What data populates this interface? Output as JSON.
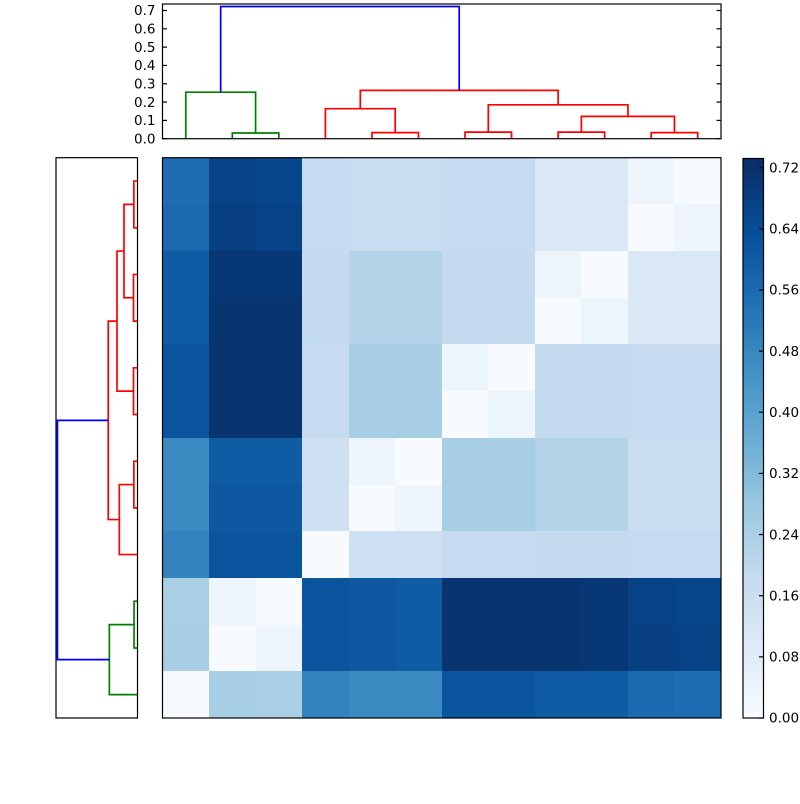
{
  "figure": {
    "background": "#ffffff",
    "description": "Hierarchical clustering figure: top and left dendrograms flanking a 12x12 distance-matrix heatmap with a Blues colorbar on the right"
  },
  "colors": {
    "axes_edge": "#000000",
    "tick_label": "#000000",
    "dendro_blue": "#0000ff",
    "dendro_green": "#008000",
    "dendro_red": "#ff0000"
  },
  "chart_data": {
    "type": "heatmap",
    "title": "",
    "grid": false,
    "colormap": {
      "name": "Blues",
      "vmin": 0.0,
      "vmax": 0.72,
      "anchors": [
        {
          "t": 0.0,
          "color": "#f7fbff"
        },
        {
          "t": 0.125,
          "color": "#deebf7"
        },
        {
          "t": 0.25,
          "color": "#c6dbef"
        },
        {
          "t": 0.375,
          "color": "#9ecae1"
        },
        {
          "t": 0.5,
          "color": "#6baed6"
        },
        {
          "t": 0.625,
          "color": "#4292c6"
        },
        {
          "t": 0.75,
          "color": "#2171b5"
        },
        {
          "t": 0.875,
          "color": "#08519c"
        },
        {
          "t": 1.0,
          "color": "#08306b"
        }
      ]
    },
    "heatmap": {
      "n_rows": 12,
      "n_cols": 12,
      "note": "Distance matrix; columns left-to-right are dendrogram leaves L1..L12, rows top-to-bottom are leaves L12..L1 (anti-diagonal is zero)",
      "values": [
        [
          0.55,
          0.67,
          0.66,
          0.18,
          0.17,
          0.17,
          0.18,
          0.18,
          0.105,
          0.105,
          0.033,
          0.0
        ],
        [
          0.56,
          0.68,
          0.67,
          0.18,
          0.17,
          0.17,
          0.18,
          0.18,
          0.105,
          0.105,
          0.0,
          0.033
        ],
        [
          0.6,
          0.7,
          0.7,
          0.185,
          0.22,
          0.22,
          0.185,
          0.185,
          0.036,
          0.0,
          0.105,
          0.105
        ],
        [
          0.6,
          0.71,
          0.71,
          0.185,
          0.22,
          0.22,
          0.185,
          0.185,
          0.0,
          0.036,
          0.105,
          0.105
        ],
        [
          0.62,
          0.71,
          0.71,
          0.18,
          0.25,
          0.25,
          0.036,
          0.0,
          0.185,
          0.185,
          0.18,
          0.18
        ],
        [
          0.62,
          0.71,
          0.71,
          0.18,
          0.25,
          0.25,
          0.0,
          0.036,
          0.185,
          0.185,
          0.18,
          0.18
        ],
        [
          0.47,
          0.6,
          0.6,
          0.155,
          0.033,
          0.0,
          0.25,
          0.25,
          0.22,
          0.22,
          0.17,
          0.17
        ],
        [
          0.47,
          0.61,
          0.61,
          0.15,
          0.0,
          0.033,
          0.25,
          0.25,
          0.22,
          0.22,
          0.17,
          0.17
        ],
        [
          0.49,
          0.62,
          0.62,
          0.0,
          0.15,
          0.155,
          0.18,
          0.18,
          0.185,
          0.185,
          0.18,
          0.18
        ],
        [
          0.245,
          0.031,
          0.0,
          0.62,
          0.61,
          0.6,
          0.71,
          0.71,
          0.71,
          0.7,
          0.67,
          0.66
        ],
        [
          0.25,
          0.0,
          0.031,
          0.62,
          0.61,
          0.6,
          0.71,
          0.71,
          0.71,
          0.7,
          0.68,
          0.67
        ],
        [
          0.0,
          0.25,
          0.245,
          0.49,
          0.47,
          0.47,
          0.62,
          0.62,
          0.6,
          0.6,
          0.56,
          0.55
        ]
      ]
    },
    "dendrogram": {
      "n_leaves": 12,
      "leaf_ids": [
        "L1",
        "L2",
        "L3",
        "L4",
        "L5",
        "L6",
        "L7",
        "L8",
        "L9",
        "L10",
        "L11",
        "L12"
      ],
      "merges": [
        {
          "id": "G1",
          "children": [
            "L2",
            "L3"
          ],
          "height": 0.031,
          "color": "green"
        },
        {
          "id": "G",
          "children": [
            "L1",
            "G1"
          ],
          "height": 0.254,
          "color": "green"
        },
        {
          "id": "R1a",
          "children": [
            "L5",
            "L6"
          ],
          "height": 0.033,
          "color": "red"
        },
        {
          "id": "R1",
          "children": [
            "L4",
            "R1a"
          ],
          "height": 0.164,
          "color": "red"
        },
        {
          "id": "R2a",
          "children": [
            "L7",
            "L8"
          ],
          "height": 0.036,
          "color": "red"
        },
        {
          "id": "R2b",
          "children": [
            "L9",
            "L10"
          ],
          "height": 0.036,
          "color": "red"
        },
        {
          "id": "R2c",
          "children": [
            "L11",
            "L12"
          ],
          "height": 0.033,
          "color": "red"
        },
        {
          "id": "R2bc",
          "children": [
            "R2b",
            "R2c"
          ],
          "height": 0.122,
          "color": "red"
        },
        {
          "id": "R2",
          "children": [
            "R2a",
            "R2bc"
          ],
          "height": 0.185,
          "color": "red"
        },
        {
          "id": "R",
          "children": [
            "R1",
            "R2"
          ],
          "height": 0.264,
          "color": "red"
        },
        {
          "id": "ROOT",
          "children": [
            "G",
            "R"
          ],
          "height": 0.722,
          "color": "blue"
        }
      ]
    },
    "top_axis": {
      "tick_values": [
        0.0,
        0.1,
        0.2,
        0.3,
        0.4,
        0.5,
        0.6,
        0.7
      ],
      "tick_labels": [
        "0.0",
        "0.1",
        "0.2",
        "0.3",
        "0.4",
        "0.5",
        "0.6",
        "0.7"
      ],
      "axis_max": 0.735
    },
    "colorbar": {
      "tick_values": [
        0.0,
        0.08,
        0.16,
        0.24,
        0.32,
        0.4,
        0.48,
        0.56,
        0.64,
        0.72
      ],
      "tick_labels": [
        "0.00",
        "0.08",
        "0.16",
        "0.24",
        "0.32",
        "0.40",
        "0.48",
        "0.56",
        "0.64",
        "0.72"
      ],
      "axis_max": 0.732
    }
  }
}
